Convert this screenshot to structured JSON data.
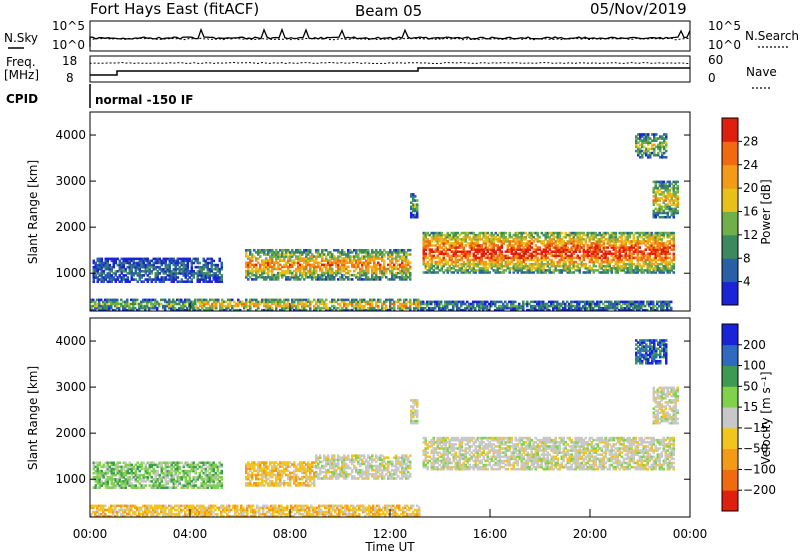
{
  "header": {
    "left_title": "Fort Hays East (fitACF)",
    "center_title": "Beam 05",
    "right_title": "05/Nov/2019"
  },
  "summary_panels": {
    "nsky_label": "N.Sky",
    "nsky_ticks": [
      "10^5",
      "10^0"
    ],
    "nsearch_label": "N.Search",
    "nsearch_ticks": [
      "10^5",
      "10^0"
    ],
    "freq_label": "Freq.",
    "freq_unit": "[MHz]",
    "freq_ticks": [
      "18",
      "8"
    ],
    "nave_label": "Nave",
    "nave_ticks": [
      "60",
      "0"
    ],
    "cpid_label": "CPID",
    "cpid_text": "normal -150 IF"
  },
  "chart_data": [
    {
      "type": "heatmap",
      "name": "power",
      "ylabel": "Slant Range [km]",
      "xlabel": "Time UT",
      "xlim": [
        0,
        24
      ],
      "ylim": [
        180,
        4500
      ],
      "yticks": [
        "1000",
        "2000",
        "3000",
        "4000"
      ],
      "xticks": [
        "00:00",
        "04:00",
        "08:00",
        "12:00",
        "16:00",
        "20:00",
        "00:00"
      ],
      "colorbar_label": "Power [dB]",
      "colorbar_ticks": [
        "4",
        "8",
        "12",
        "16",
        "20",
        "24",
        "28"
      ],
      "colorbar_range": [
        0,
        32
      ],
      "colors": [
        "#1a23d8",
        "#2a5fa6",
        "#3b8a5e",
        "#6fb04a",
        "#e8c01a",
        "#f39a17",
        "#f06a10",
        "#e0200e"
      ],
      "echo_bands": [
        {
          "t0": 0,
          "t1": 4.2,
          "r0": 180,
          "r1": 420,
          "level": 0.35
        },
        {
          "t0": 4.2,
          "t1": 13.2,
          "r0": 180,
          "r1": 420,
          "level": 0.55
        },
        {
          "t0": 13.2,
          "t1": 23.2,
          "r0": 180,
          "r1": 380,
          "level": 0.25
        },
        {
          "t0": 0.1,
          "t1": 5.3,
          "r0": 800,
          "r1": 1300,
          "level": 0.2
        },
        {
          "t0": 6.2,
          "t1": 12.8,
          "r0": 850,
          "r1": 1500,
          "level": 0.6
        },
        {
          "t0": 12.8,
          "t1": 13.1,
          "r0": 2200,
          "r1": 2700,
          "level": 0.3
        },
        {
          "t0": 13.3,
          "t1": 23.3,
          "r0": 1000,
          "r1": 1900,
          "level": 0.75
        },
        {
          "t0": 22.5,
          "t1": 23.5,
          "r0": 2200,
          "r1": 3000,
          "level": 0.5
        },
        {
          "t0": 21.8,
          "t1": 23.0,
          "r0": 3500,
          "r1": 4000,
          "level": 0.4
        }
      ]
    },
    {
      "type": "heatmap",
      "name": "velocity",
      "ylabel": "Slant Range [km]",
      "xlabel": "Time UT",
      "xlim": [
        0,
        24
      ],
      "ylim": [
        180,
        4500
      ],
      "yticks": [
        "1000",
        "2000",
        "3000",
        "4000"
      ],
      "xticks": [
        "00:00",
        "04:00",
        "08:00",
        "12:00",
        "16:00",
        "20:00",
        "00:00"
      ],
      "colorbar_label": "Velocity [m s⁻¹]",
      "colorbar_ticks": [
        "200",
        "100",
        "50",
        "15",
        "−15",
        "−50",
        "−100",
        "−200"
      ],
      "colors": [
        "#1a23d8",
        "#2f6ac0",
        "#3d9a52",
        "#7fd24a",
        "#c8c8c8",
        "#f3c41d",
        "#f39a17",
        "#f06a10",
        "#e0200e"
      ],
      "echo_bands": [
        {
          "t0": 0,
          "t1": 13.2,
          "r0": 180,
          "r1": 420,
          "vel": "neg-small"
        },
        {
          "t0": 0.1,
          "t1": 5.3,
          "r0": 800,
          "r1": 1350,
          "vel": "pos-small"
        },
        {
          "t0": 6.2,
          "t1": 9.0,
          "r0": 850,
          "r1": 1350,
          "vel": "neg-small"
        },
        {
          "t0": 9.0,
          "t1": 12.8,
          "r0": 1000,
          "r1": 1500,
          "vel": "zero"
        },
        {
          "t0": 12.8,
          "t1": 13.1,
          "r0": 2200,
          "r1": 2700,
          "vel": "zero"
        },
        {
          "t0": 13.3,
          "t1": 23.3,
          "r0": 1200,
          "r1": 1900,
          "vel": "zero"
        },
        {
          "t0": 22.5,
          "t1": 23.5,
          "r0": 2200,
          "r1": 3000,
          "vel": "zero"
        },
        {
          "t0": 21.8,
          "t1": 23.0,
          "r0": 3500,
          "r1": 4000,
          "vel": "pos-large"
        }
      ]
    }
  ]
}
